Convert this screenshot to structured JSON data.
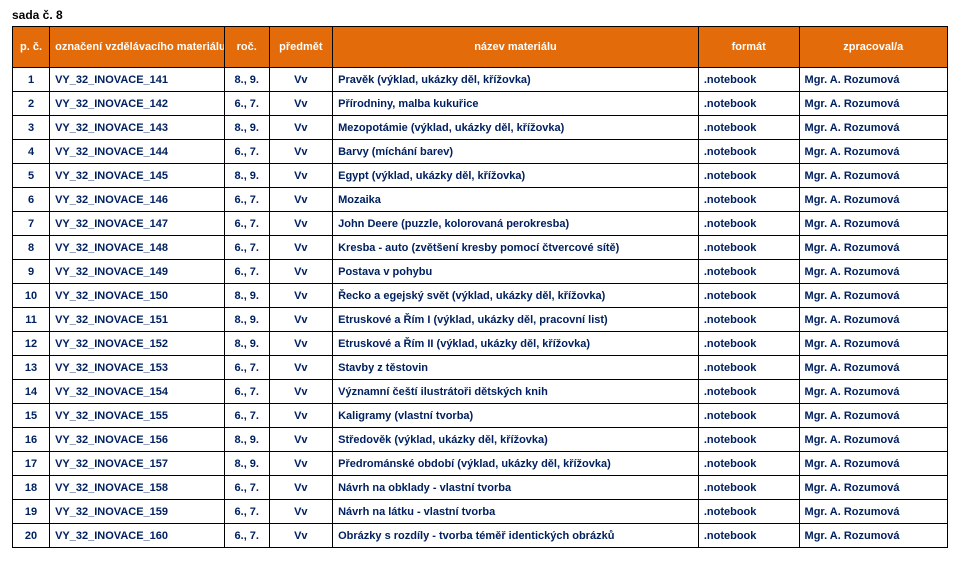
{
  "title": "sada č. 8",
  "colors": {
    "header_bg": "#e36b09",
    "header_text": "#ffffff",
    "row_text": "#002060",
    "border": "#000000",
    "background": "#ffffff"
  },
  "columns": [
    {
      "key": "pc",
      "label": "p. č."
    },
    {
      "key": "ozn",
      "label": "označení vzdělávacího materiálu"
    },
    {
      "key": "roc",
      "label": "roč."
    },
    {
      "key": "pred",
      "label": "předmět"
    },
    {
      "key": "nazev",
      "label": "název materiálu"
    },
    {
      "key": "fmt",
      "label": "formát"
    },
    {
      "key": "zpr",
      "label": "zpracoval/a"
    }
  ],
  "rows": [
    {
      "pc": "1",
      "ozn": "VY_32_INOVACE_141",
      "roc": "8., 9.",
      "pred": "Vv",
      "nazev": "Pravěk (výklad, ukázky děl, křížovka)",
      "fmt": ".notebook",
      "zpr": "Mgr. A. Rozumová"
    },
    {
      "pc": "2",
      "ozn": "VY_32_INOVACE_142",
      "roc": "6., 7.",
      "pred": "Vv",
      "nazev": "Přírodniny, malba kukuřice",
      "fmt": ".notebook",
      "zpr": "Mgr. A. Rozumová"
    },
    {
      "pc": "3",
      "ozn": "VY_32_INOVACE_143",
      "roc": "8., 9.",
      "pred": "Vv",
      "nazev": "Mezopotámie (výklad, ukázky děl, křížovka)",
      "fmt": ".notebook",
      "zpr": "Mgr. A. Rozumová"
    },
    {
      "pc": "4",
      "ozn": "VY_32_INOVACE_144",
      "roc": "6., 7.",
      "pred": "Vv",
      "nazev": "Barvy (míchání barev)",
      "fmt": ".notebook",
      "zpr": "Mgr. A. Rozumová"
    },
    {
      "pc": "5",
      "ozn": "VY_32_INOVACE_145",
      "roc": "8., 9.",
      "pred": "Vv",
      "nazev": "Egypt (výklad, ukázky děl, křížovka)",
      "fmt": ".notebook",
      "zpr": "Mgr. A. Rozumová"
    },
    {
      "pc": "6",
      "ozn": "VY_32_INOVACE_146",
      "roc": "6., 7.",
      "pred": "Vv",
      "nazev": "Mozaika",
      "fmt": ".notebook",
      "zpr": "Mgr. A. Rozumová"
    },
    {
      "pc": "7",
      "ozn": "VY_32_INOVACE_147",
      "roc": "6., 7.",
      "pred": "Vv",
      "nazev": "John Deere (puzzle, kolorovaná perokresba)",
      "fmt": ".notebook",
      "zpr": "Mgr. A. Rozumová"
    },
    {
      "pc": "8",
      "ozn": "VY_32_INOVACE_148",
      "roc": "6., 7.",
      "pred": "Vv",
      "nazev": "Kresba - auto (zvětšení kresby pomocí čtvercové sítě)",
      "fmt": ".notebook",
      "zpr": "Mgr. A. Rozumová"
    },
    {
      "pc": "9",
      "ozn": "VY_32_INOVACE_149",
      "roc": "6., 7.",
      "pred": "Vv",
      "nazev": "Postava v pohybu",
      "fmt": ".notebook",
      "zpr": "Mgr. A. Rozumová"
    },
    {
      "pc": "10",
      "ozn": "VY_32_INOVACE_150",
      "roc": "8., 9.",
      "pred": "Vv",
      "nazev": "Řecko a egejský svět (výklad, ukázky děl, křížovka)",
      "fmt": ".notebook",
      "zpr": "Mgr. A. Rozumová"
    },
    {
      "pc": "11",
      "ozn": "VY_32_INOVACE_151",
      "roc": "8., 9.",
      "pred": "Vv",
      "nazev": "Etruskové a Řím I (výklad, ukázky děl, pracovní list)",
      "fmt": ".notebook",
      "zpr": "Mgr. A. Rozumová"
    },
    {
      "pc": "12",
      "ozn": "VY_32_INOVACE_152",
      "roc": "8., 9.",
      "pred": "Vv",
      "nazev": "Etruskové a Řím II (výklad, ukázky děl, křížovka)",
      "fmt": ".notebook",
      "zpr": "Mgr. A. Rozumová"
    },
    {
      "pc": "13",
      "ozn": "VY_32_INOVACE_153",
      "roc": "6., 7.",
      "pred": "Vv",
      "nazev": "Stavby z těstovin",
      "fmt": ".notebook",
      "zpr": "Mgr. A. Rozumová"
    },
    {
      "pc": "14",
      "ozn": "VY_32_INOVACE_154",
      "roc": "6., 7.",
      "pred": "Vv",
      "nazev": "Významní čeští ilustrátoři dětských knih",
      "fmt": ".notebook",
      "zpr": "Mgr. A. Rozumová"
    },
    {
      "pc": "15",
      "ozn": "VY_32_INOVACE_155",
      "roc": "6., 7.",
      "pred": "Vv",
      "nazev": "Kaligramy (vlastní tvorba)",
      "fmt": ".notebook",
      "zpr": "Mgr. A. Rozumová"
    },
    {
      "pc": "16",
      "ozn": "VY_32_INOVACE_156",
      "roc": "8., 9.",
      "pred": "Vv",
      "nazev": "Středověk (výklad, ukázky děl, křížovka)",
      "fmt": ".notebook",
      "zpr": "Mgr. A. Rozumová"
    },
    {
      "pc": "17",
      "ozn": "VY_32_INOVACE_157",
      "roc": "8., 9.",
      "pred": "Vv",
      "nazev": "Předrománské období (výklad, ukázky děl, křížovka)",
      "fmt": ".notebook",
      "zpr": "Mgr. A. Rozumová"
    },
    {
      "pc": "18",
      "ozn": "VY_32_INOVACE_158",
      "roc": "6., 7.",
      "pred": "Vv",
      "nazev": "Návrh na obklady - vlastní tvorba",
      "fmt": ".notebook",
      "zpr": "Mgr. A. Rozumová"
    },
    {
      "pc": "19",
      "ozn": "VY_32_INOVACE_159",
      "roc": "6., 7.",
      "pred": "Vv",
      "nazev": "Návrh na látku - vlastní tvorba",
      "fmt": ".notebook",
      "zpr": "Mgr. A. Rozumová"
    },
    {
      "pc": "20",
      "ozn": "VY_32_INOVACE_160",
      "roc": "6., 7.",
      "pred": "Vv",
      "nazev": "Obrázky s rozdíly - tvorba téměř identických obrázků",
      "fmt": ".notebook",
      "zpr": "Mgr. A. Rozumová"
    }
  ]
}
